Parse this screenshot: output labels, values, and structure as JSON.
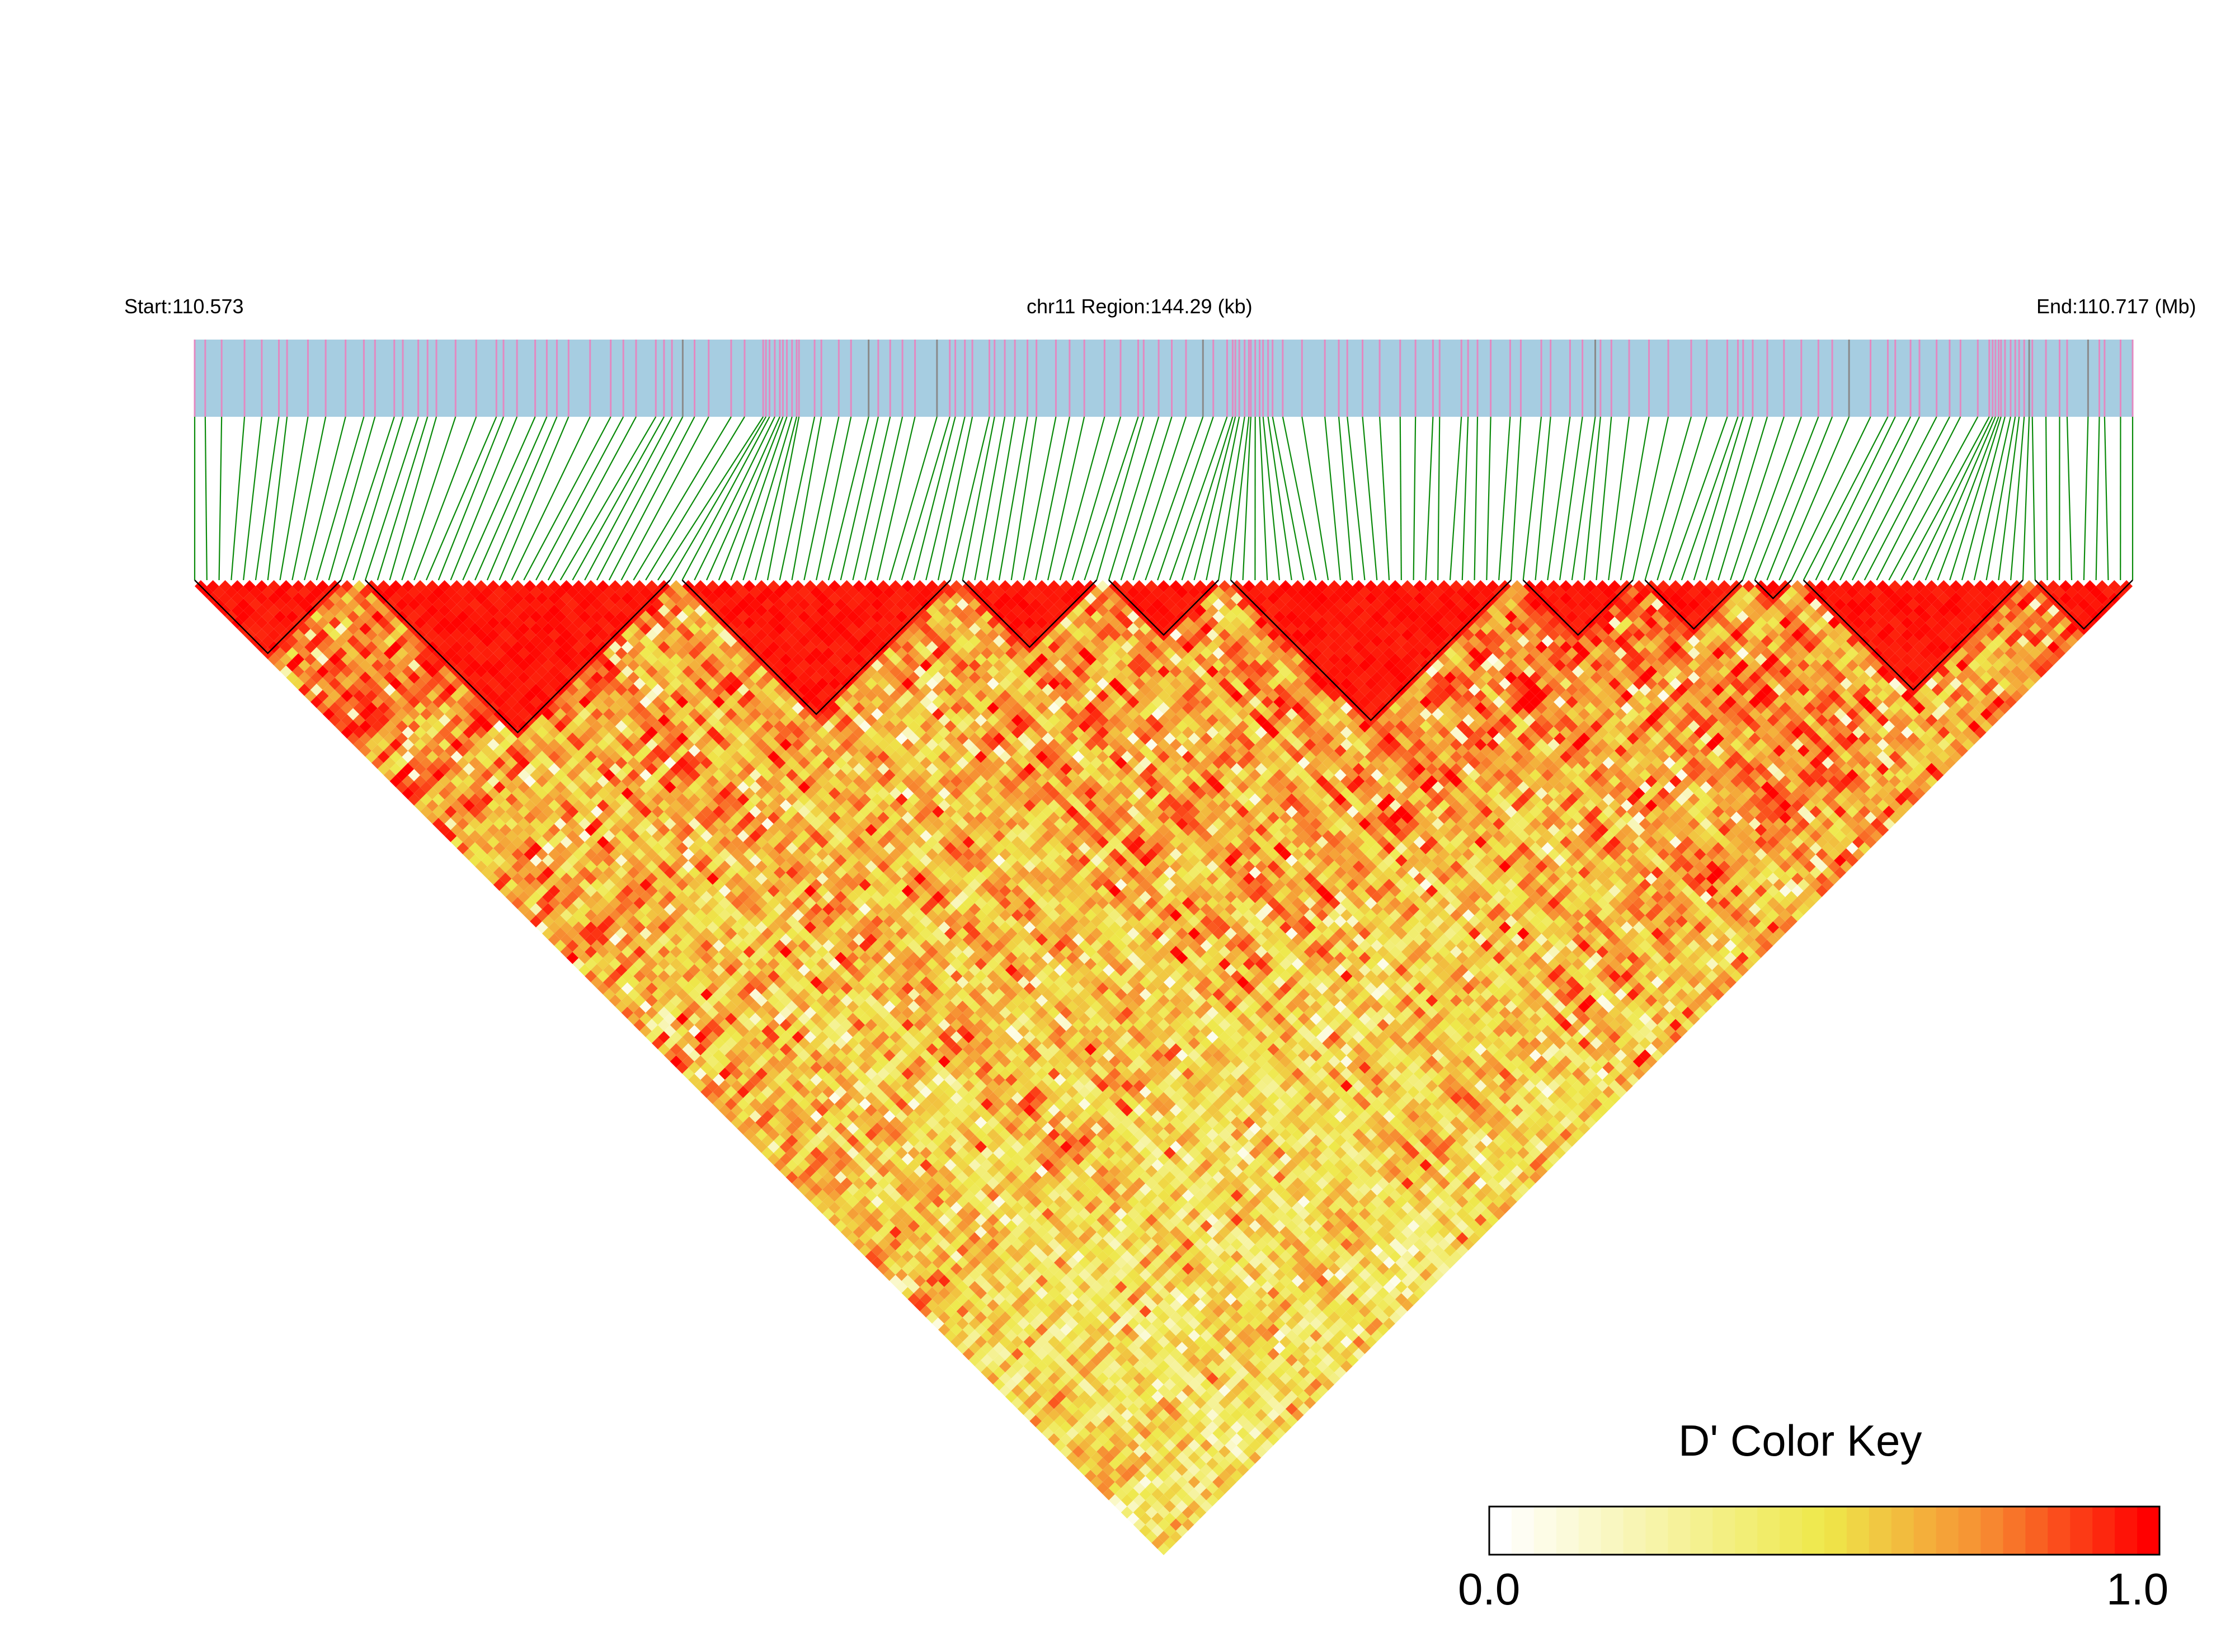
{
  "header": {
    "start_label": "Start:110.573",
    "region_label": "chr11 Region:144.29 (kb)",
    "end_label": "End:110.717 (Mb)"
  },
  "colors": {
    "track_background": "#a6cde1",
    "snp_marker": "#e389c1",
    "snp_marker_dark": "#8a8a8a",
    "connector_line": "#0a8a0a",
    "ld_low": "#ffffff",
    "ld_mid": "#eee84a",
    "ld_high": "#ff0000",
    "block_outline": "#000000"
  },
  "color_key": {
    "title": "D' Color Key",
    "min_label": "0.0",
    "max_label": "1.0",
    "min": 0.0,
    "max": 1.0
  },
  "heatmap": {
    "metric": "D'",
    "orientation": "inverted-triangle",
    "ld_blocks_shown": true
  }
}
